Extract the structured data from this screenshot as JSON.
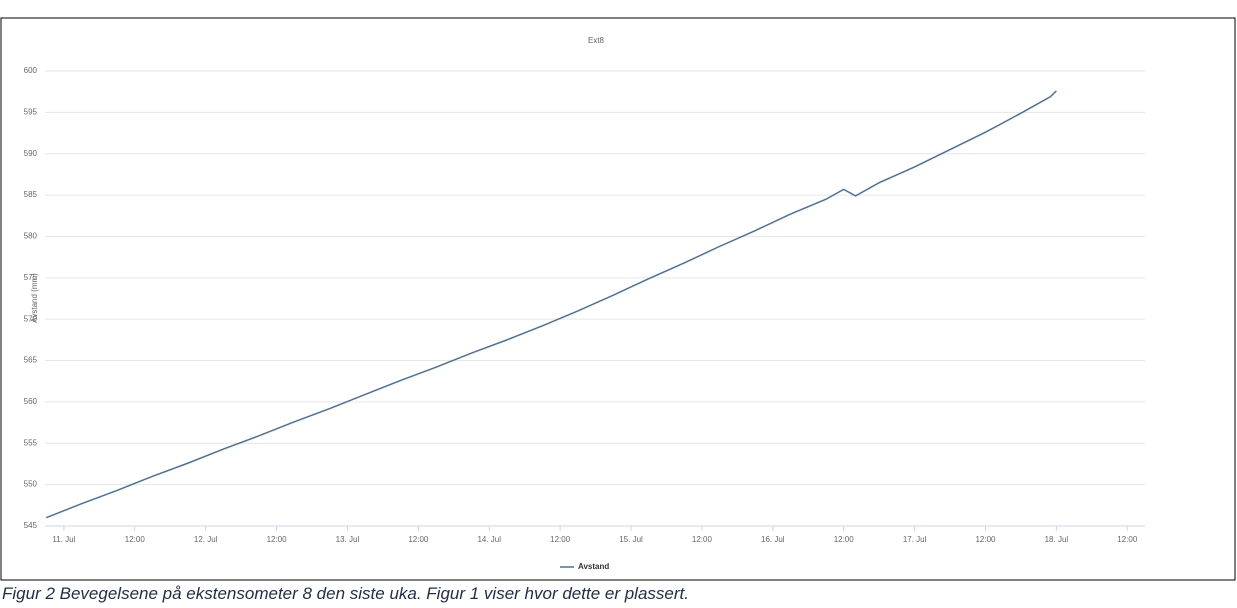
{
  "chart_data": {
    "type": "line",
    "title": "Ext8",
    "y_label": "Avstand (mm)",
    "x": [
      -3,
      3,
      9,
      15,
      21,
      27,
      33,
      39,
      45,
      51,
      57,
      63,
      69,
      75,
      81,
      87,
      93,
      99,
      105,
      111,
      117,
      123,
      129,
      132,
      134,
      138,
      144,
      150,
      156,
      162,
      167,
      168
    ],
    "series": [
      {
        "name": "Avstand",
        "color": "#4a6fa5",
        "values": [
          546,
          547.7,
          549.3,
          551.0,
          552.6,
          554.3,
          555.9,
          557.6,
          559.2,
          560.9,
          562.6,
          564.2,
          565.9,
          567.5,
          569.2,
          571.0,
          572.9,
          574.9,
          576.8,
          578.8,
          580.7,
          582.7,
          584.5,
          585.7,
          584.9,
          586.5,
          588.4,
          590.5,
          592.6,
          594.9,
          596.9,
          597.6
        ]
      }
    ],
    "xlim": [
      -3.2,
      183
    ],
    "xticks": [
      {
        "value": 0,
        "label": "11. Jul"
      },
      {
        "value": 12,
        "label": "12:00"
      },
      {
        "value": 24,
        "label": "12. Jul"
      },
      {
        "value": 36,
        "label": "12:00"
      },
      {
        "value": 48,
        "label": "13. Jul"
      },
      {
        "value": 60,
        "label": "12:00"
      },
      {
        "value": 72,
        "label": "14. Jul"
      },
      {
        "value": 84,
        "label": "12:00"
      },
      {
        "value": 96,
        "label": "15. Jul"
      },
      {
        "value": 108,
        "label": "12:00"
      },
      {
        "value": 120,
        "label": "16. Jul"
      },
      {
        "value": 132,
        "label": "12:00"
      },
      {
        "value": 144,
        "label": "17. Jul"
      },
      {
        "value": 156,
        "label": "12:00"
      },
      {
        "value": 168,
        "label": "18. Jul"
      },
      {
        "value": 180,
        "label": "12:00"
      }
    ],
    "ylim": [
      545,
      600
    ],
    "yticks": [
      545,
      550,
      555,
      560,
      565,
      570,
      575,
      580,
      585,
      590,
      595,
      600
    ],
    "grid": true,
    "legend": "bottom",
    "caption": "Figur 2 Bevegelsene på ekstensometer 8 den siste uka. Figur 1 viser hvor dette er plassert."
  }
}
